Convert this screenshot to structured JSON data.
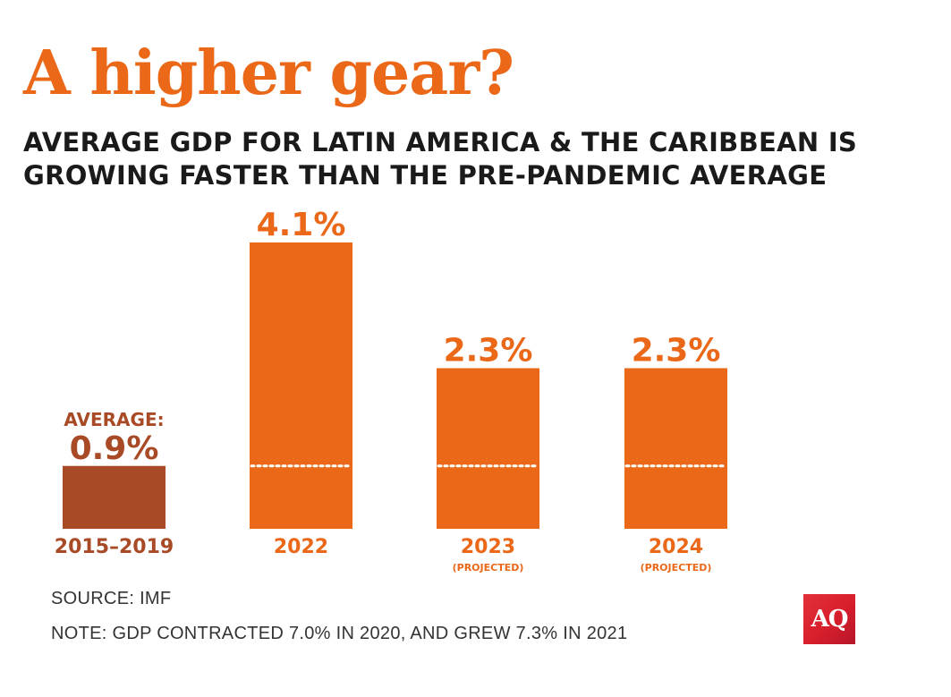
{
  "title": "A higher gear?",
  "subtitle": {
    "line1": "AVERAGE GDP FOR LATIN AMERICA & THE CARIBBEAN IS",
    "line2": "GROWING FASTER THAN THE PRE-PANDEMIC AVERAGE"
  },
  "chart_data": {
    "type": "bar",
    "title": "A higher gear?",
    "subtitle": "AVERAGE GDP FOR LATIN AMERICA & THE CARIBBEAN IS GROWING FASTER THAN THE PRE-PANDEMIC AVERAGE",
    "xlabel": "",
    "ylabel": "",
    "ylim": [
      0,
      4.1
    ],
    "categories": [
      "2015–2019",
      "2022",
      "2023",
      "2024"
    ],
    "values": [
      0.9,
      4.1,
      2.3,
      2.3
    ],
    "value_labels": [
      "0.9%",
      "4.1%",
      "2.3%",
      "2.3%"
    ],
    "sublabels": [
      "",
      "",
      "(PROJECTED)",
      "(PROJECTED)"
    ],
    "average_label": "AVERAGE:",
    "reference_line": 0.9,
    "colors": {
      "average_bar": "#a84a26",
      "bar": "#ea6818",
      "reference_line": "#ffffff"
    }
  },
  "footer": {
    "source": "SOURCE: IMF",
    "note": "NOTE: GDP CONTRACTED 7.0% IN 2020, AND GREW 7.3% IN 2021"
  },
  "logo": {
    "text": "AQ"
  }
}
